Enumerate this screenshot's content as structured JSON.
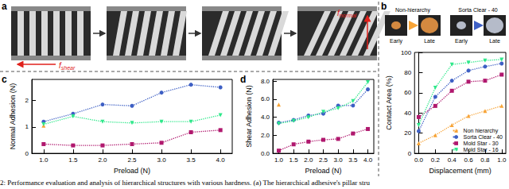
{
  "panel_labels": [
    "a",
    "b",
    "c",
    "d"
  ],
  "panel_a": {
    "force_labels": [
      {
        "symbol": "f",
        "subscript": "shear"
      },
      {
        "symbol": "f",
        "subscript": "normal"
      }
    ],
    "color": "#e0201b"
  },
  "panel_b_images": {
    "groups": [
      "Non-hierarchy",
      "Sorta Clear - 40"
    ],
    "stages": [
      "Early",
      "Late"
    ]
  },
  "caption": "2: Performance evaluation and analysis of hierarchical structures with various hardness. (a) The hierarchical adhesive's pillar stru",
  "chart_data": [
    {
      "type": "line",
      "x_label": "Displacement (mm)",
      "y_label": "Contact Area (%)",
      "x": [
        0.0,
        0.2,
        0.4,
        0.6,
        0.8,
        1.0
      ],
      "xlim": [
        -0.05,
        1.05
      ],
      "xticks": [
        {
          "value": 0,
          "label": "0.0"
        },
        {
          "value": 0.2,
          "label": "0.2"
        },
        {
          "value": 0.4,
          "label": "0.4"
        },
        {
          "value": 0.6,
          "label": "0.6"
        },
        {
          "value": 0.8,
          "label": "0.8"
        },
        {
          "value": 1,
          "label": "1.0"
        }
      ],
      "ylim": [
        0,
        100
      ],
      "yticks": [
        0,
        20,
        40,
        60,
        80,
        100
      ],
      "grid": false,
      "legend": "lower right",
      "line_style": "dotted",
      "series": [
        {
          "name": "Non hierarchy",
          "color": "#f7a437",
          "marker": "triangle",
          "values": [
            10,
            18,
            28,
            37,
            42,
            47
          ]
        },
        {
          "name": "Sorta Clear - 40",
          "color": "#3d5fc4",
          "marker": "circle",
          "values": [
            22,
            56,
            72,
            82,
            86,
            89
          ]
        },
        {
          "name": "Mold Star - 30",
          "color": "#b0186e",
          "marker": "square",
          "values": [
            36,
            47,
            62,
            71,
            72,
            78
          ]
        },
        {
          "name": "Mold Star - 16",
          "color": "#2ee88a",
          "marker": "triangle-down",
          "values": [
            28,
            65,
            88,
            90,
            92,
            93
          ]
        }
      ]
    },
    {
      "type": "line",
      "x_label": "Preload (N)",
      "y_label": "Normal Adhesion (N)",
      "x": [
        1.0,
        1.5,
        2.0,
        2.5,
        3.0,
        3.5,
        4.0
      ],
      "xlim": [
        0.8,
        4.2
      ],
      "xticks": [
        {
          "value": 1,
          "label": "1.0"
        },
        {
          "value": 1.5,
          "label": "1.5"
        },
        {
          "value": 2,
          "label": "2.0"
        },
        {
          "value": 2.5,
          "label": "2.5"
        },
        {
          "value": 3,
          "label": "3.0"
        },
        {
          "value": 3.5,
          "label": "3.5"
        },
        {
          "value": 4,
          "label": "4.0"
        }
      ],
      "ylim": [
        0,
        2.8
      ],
      "yticks": [
        0,
        1,
        2
      ],
      "grid": false,
      "line_style": "dotted",
      "series": [
        {
          "color": "#f7a437",
          "marker": "triangle",
          "values": [
            1.05,
            null,
            null,
            null,
            null,
            null,
            null
          ]
        },
        {
          "color": "#3d5fc4",
          "marker": "circle",
          "values": [
            1.2,
            1.5,
            1.85,
            1.8,
            2.3,
            2.6,
            2.5
          ]
        },
        {
          "color": "#b0186e",
          "marker": "square",
          "values": [
            0.35,
            0.3,
            0.3,
            0.35,
            0.4,
            0.8,
            0.88
          ]
        },
        {
          "color": "#2ee88a",
          "marker": "triangle-down",
          "values": [
            1.1,
            1.4,
            1.2,
            1.15,
            1.2,
            1.2,
            1.45
          ]
        }
      ]
    },
    {
      "type": "line",
      "x_label": "Preload (N)",
      "y_label": "Shear Adhesion (N)",
      "x": [
        1.0,
        1.5,
        2.0,
        2.5,
        3.0,
        3.5,
        4.0
      ],
      "xlim": [
        0.8,
        4.2
      ],
      "xticks": [
        {
          "value": 1,
          "label": "1.0"
        },
        {
          "value": 1.5,
          "label": "1.5"
        },
        {
          "value": 2,
          "label": "2.0"
        },
        {
          "value": 2.5,
          "label": "2.5"
        },
        {
          "value": 3,
          "label": "3.0"
        },
        {
          "value": 3.5,
          "label": "3.5"
        },
        {
          "value": 4,
          "label": "4.0"
        }
      ],
      "ylim": [
        0,
        8.2
      ],
      "yticks": [
        {
          "value": 0,
          "label": "0.0"
        },
        {
          "value": 2,
          "label": "2.0"
        },
        {
          "value": 4,
          "label": "4.0"
        },
        {
          "value": 6,
          "label": "6.0"
        },
        {
          "value": 8,
          "label": "8.0"
        }
      ],
      "grid": false,
      "line_style": "dotted",
      "series": [
        {
          "color": "#f7a437",
          "marker": "triangle",
          "values": [
            5.4,
            null,
            null,
            null,
            null,
            null,
            null
          ]
        },
        {
          "color": "#3d5fc4",
          "marker": "circle",
          "values": [
            3.4,
            3.7,
            4.2,
            4.4,
            5.3,
            5.3,
            7.1
          ]
        },
        {
          "color": "#b0186e",
          "marker": "square",
          "values": [
            0.3,
            1.0,
            1.3,
            1.5,
            1.6,
            2.2,
            2.7
          ]
        },
        {
          "color": "#2ee88a",
          "marker": "triangle-down",
          "values": [
            3.3,
            3.6,
            4.0,
            4.6,
            5.0,
            5.8,
            7.9
          ]
        }
      ]
    }
  ]
}
